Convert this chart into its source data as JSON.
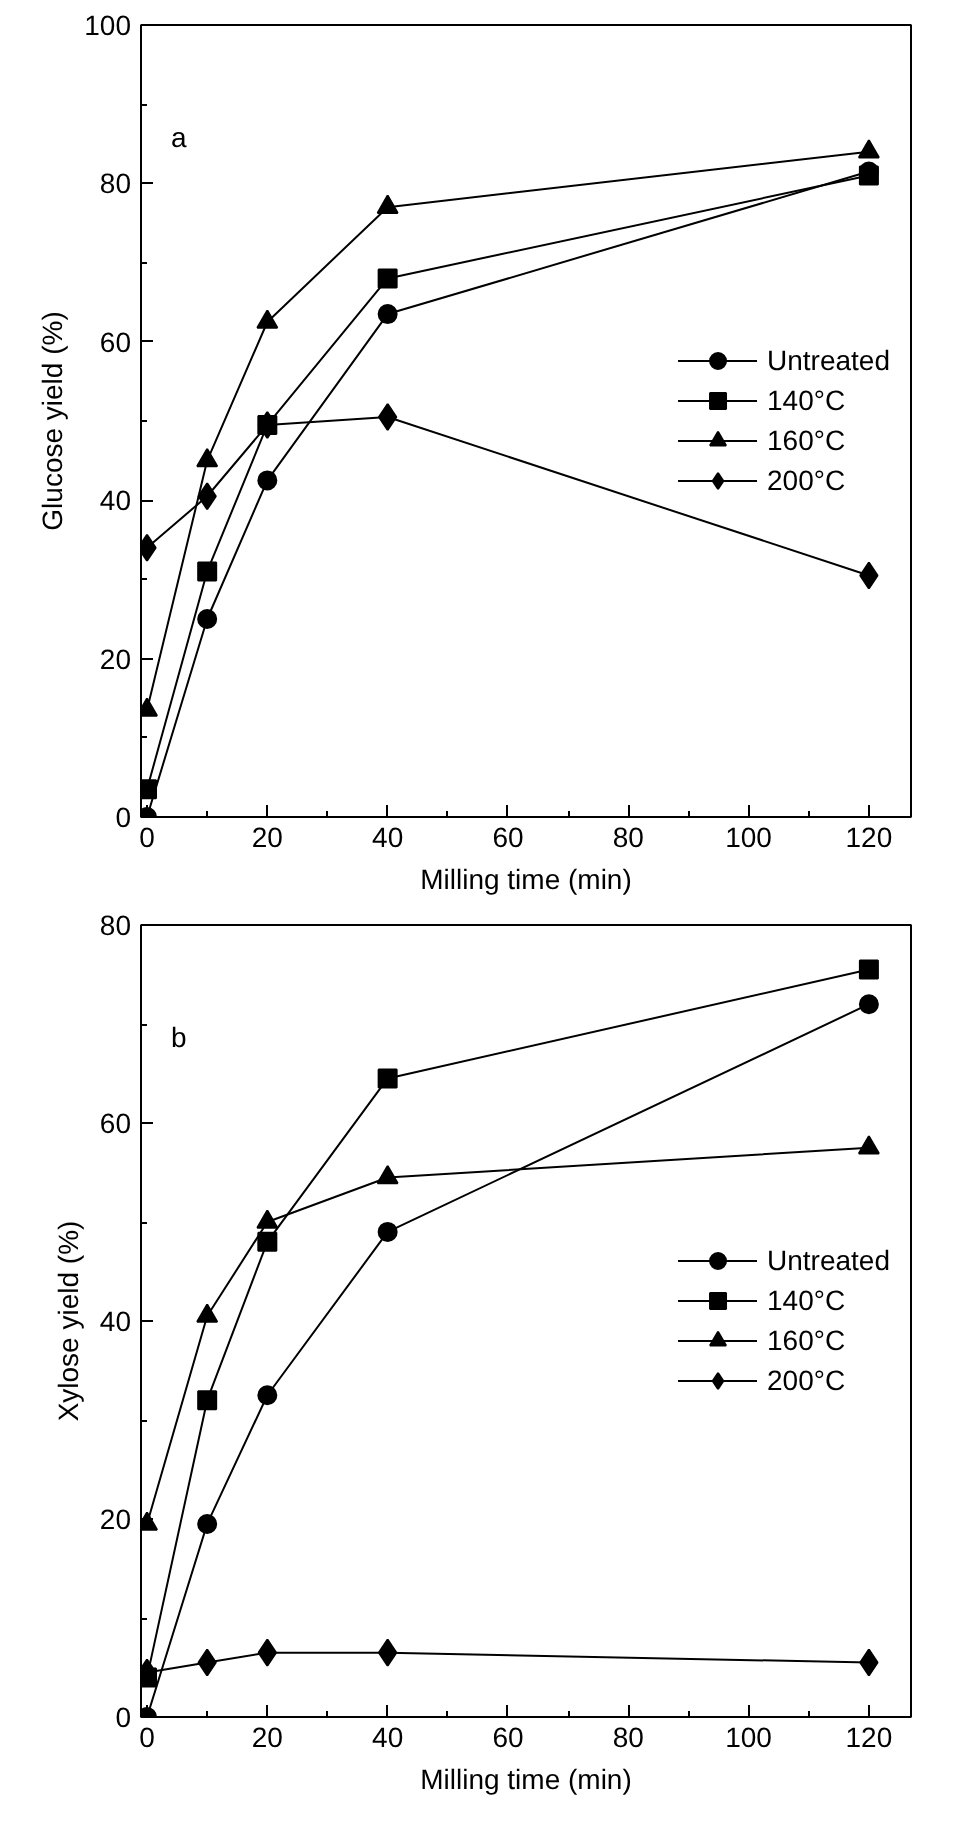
{
  "chart_data": [
    {
      "type": "line",
      "annotations": [
        "a"
      ],
      "xlabel": "Milling time (min)",
      "ylabel": "Glucose yield (%)",
      "x": [
        0,
        10,
        20,
        40,
        120
      ],
      "xlim": [
        -1,
        127
      ],
      "xticks": [
        0,
        20,
        40,
        60,
        80,
        100,
        120
      ],
      "ylim": [
        0,
        100
      ],
      "yticks": [
        0,
        20,
        40,
        60,
        80,
        100
      ],
      "grid": false,
      "legend": "right",
      "series": [
        {
          "name": "Untreated",
          "color": "#000000",
          "marker": "circle",
          "values": [
            0,
            25,
            42.5,
            63.5,
            81.5
          ]
        },
        {
          "name": "140°C",
          "color": "#000000",
          "marker": "square",
          "values": [
            3.5,
            31,
            49.5,
            68,
            81
          ]
        },
        {
          "name": "160°C",
          "color": "#000000",
          "marker": "triangle",
          "values": [
            13.5,
            45,
            62.5,
            77,
            84
          ]
        },
        {
          "name": "200°C",
          "color": "#000000",
          "marker": "diamond",
          "values": [
            34,
            40.5,
            49.5,
            50.5,
            30.5
          ]
        }
      ]
    },
    {
      "type": "line",
      "annotations": [
        "b"
      ],
      "xlabel": "Milling time (min)",
      "ylabel": "Xylose yield (%)",
      "x": [
        0,
        10,
        20,
        40,
        120
      ],
      "xlim": [
        -1,
        127
      ],
      "xticks": [
        0,
        20,
        40,
        60,
        80,
        100,
        120
      ],
      "ylim": [
        0,
        80
      ],
      "yticks": [
        0,
        20,
        40,
        60,
        80
      ],
      "grid": false,
      "legend": "right",
      "series": [
        {
          "name": "Untreated",
          "color": "#000000",
          "marker": "circle",
          "values": [
            0,
            19.5,
            32.5,
            49,
            72
          ]
        },
        {
          "name": "140°C",
          "color": "#000000",
          "marker": "square",
          "values": [
            4,
            32,
            48,
            64.5,
            75.5
          ]
        },
        {
          "name": "160°C",
          "color": "#000000",
          "marker": "triangle",
          "values": [
            19.5,
            40.5,
            50,
            54.5,
            57.5
          ]
        },
        {
          "name": "200°C",
          "color": "#000000",
          "marker": "diamond",
          "values": [
            4.5,
            5.5,
            6.5,
            6.5,
            5.5
          ]
        }
      ]
    }
  ]
}
